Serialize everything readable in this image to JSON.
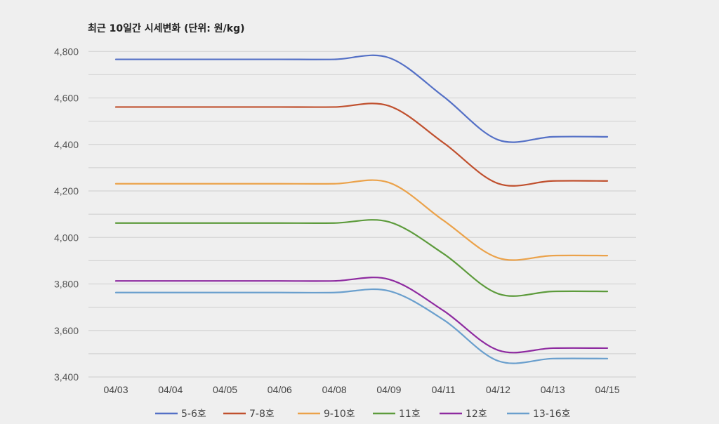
{
  "chart_data": {
    "type": "line",
    "title": "최근 10일간 시세변화 (단위: 원/kg)",
    "xlabel": "",
    "ylabel": "",
    "categories": [
      "04/03",
      "04/04",
      "04/05",
      "04/06",
      "04/08",
      "04/09",
      "04/11",
      "04/12",
      "04/13",
      "04/15"
    ],
    "ylim": [
      3400,
      4800
    ],
    "yticks": [
      3400,
      3600,
      3800,
      4000,
      4200,
      4400,
      4600,
      4800
    ],
    "ytick_labels": [
      "3,400",
      "3,600",
      "3,800",
      "4,000",
      "4,200",
      "4,400",
      "4,600",
      "4,800"
    ],
    "grid": true,
    "minor_grid_step": 100,
    "smooth": true,
    "legend_position": "bottom",
    "series": [
      {
        "name": "5-6호",
        "color": "#5470c6",
        "values": [
          4766,
          4766,
          4766,
          4766,
          4766,
          4773,
          4606,
          4420,
          4433,
          4433
        ]
      },
      {
        "name": "7-8호",
        "color": "#c0502e",
        "values": [
          4561,
          4561,
          4561,
          4561,
          4561,
          4566,
          4407,
          4232,
          4243,
          4243
        ]
      },
      {
        "name": "9-10호",
        "color": "#eba24a",
        "values": [
          4231,
          4231,
          4231,
          4231,
          4231,
          4236,
          4073,
          3912,
          3922,
          3922
        ]
      },
      {
        "name": "11호",
        "color": "#5d9b3c",
        "values": [
          4062,
          4062,
          4062,
          4062,
          4062,
          4067,
          3930,
          3758,
          3768,
          3768
        ]
      },
      {
        "name": "12호",
        "color": "#8e2aa0",
        "values": [
          3813,
          3813,
          3813,
          3813,
          3813,
          3820,
          3685,
          3515,
          3524,
          3524
        ]
      },
      {
        "name": "13-16호",
        "color": "#6a9fcd",
        "values": [
          3763,
          3763,
          3763,
          3763,
          3763,
          3770,
          3646,
          3469,
          3479,
          3479
        ]
      }
    ]
  }
}
